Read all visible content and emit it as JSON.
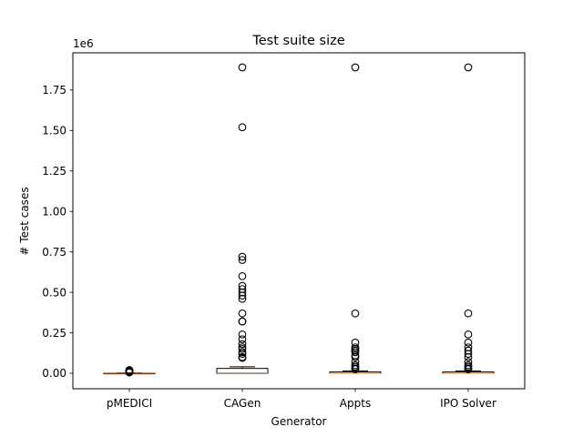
{
  "chart_data": {
    "type": "boxplot",
    "title": "Test suite size",
    "xlabel": "Generator",
    "ylabel": "# Test cases",
    "y_offset_label": "1e6",
    "ylim": [
      -0.095,
      1.99
    ],
    "y_ticks": [
      0.0,
      0.25,
      0.5,
      0.75,
      1.0,
      1.25,
      1.5,
      1.75
    ],
    "y_tick_labels": [
      "0.00",
      "0.25",
      "0.50",
      "0.75",
      "1.00",
      "1.25",
      "1.50",
      "1.75"
    ],
    "categories": [
      "pMEDICI",
      "CAGen",
      "Appts",
      "IPO Solver"
    ],
    "boxes": [
      {
        "name": "pMEDICI",
        "whisker_low": 0.0,
        "q1": 0.0,
        "median": 0.0,
        "q3": 0.001,
        "whisker_high": 0.002,
        "outliers": [
          0.005,
          0.009,
          0.013,
          0.017,
          0.02
        ]
      },
      {
        "name": "CAGen",
        "whisker_low": 0.0,
        "q1": 0.0,
        "median": 0.002,
        "q3": 0.03,
        "whisker_high": 0.04,
        "outliers": [
          1.89,
          1.52,
          0.72,
          0.7,
          0.6,
          0.54,
          0.52,
          0.5,
          0.48,
          0.46,
          0.37,
          0.32,
          0.32,
          0.24,
          0.21,
          0.18,
          0.16,
          0.15,
          0.13,
          0.12,
          0.1,
          0.095
        ]
      },
      {
        "name": "Appts",
        "whisker_low": 0.0,
        "q1": 0.0,
        "median": 0.0,
        "q3": 0.008,
        "whisker_high": 0.015,
        "outliers": [
          1.89,
          0.37,
          0.19,
          0.16,
          0.15,
          0.14,
          0.13,
          0.11,
          0.1,
          0.07,
          0.05,
          0.04,
          0.03,
          0.025
        ]
      },
      {
        "name": "IPO Solver",
        "whisker_low": 0.0,
        "q1": 0.0,
        "median": 0.0,
        "q3": 0.008,
        "whisker_high": 0.015,
        "outliers": [
          1.89,
          0.37,
          0.24,
          0.19,
          0.16,
          0.14,
          0.12,
          0.1,
          0.07,
          0.05,
          0.04,
          0.03,
          0.025
        ]
      }
    ],
    "colors": {
      "box": "#000000",
      "median": "#ff7f0e",
      "outlier": "#000000",
      "background": "#ffffff"
    },
    "grid": false,
    "legend": "none"
  }
}
